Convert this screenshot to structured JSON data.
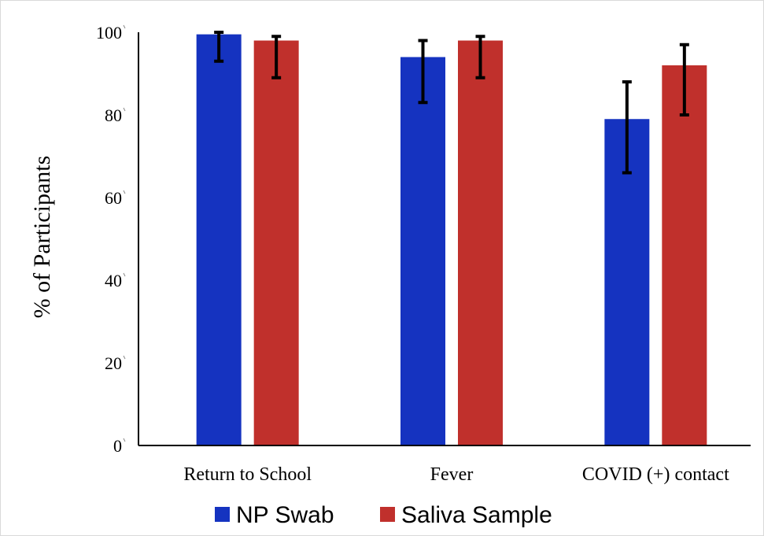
{
  "chart_data": {
    "type": "bar",
    "categories": [
      "Return to School",
      "Fever",
      "COVID (+) contact"
    ],
    "series": [
      {
        "name": "NP Swab",
        "color": "#1533c0",
        "values": [
          99.5,
          94,
          79
        ],
        "error_low": [
          93,
          83,
          66
        ],
        "error_high": [
          100,
          98,
          88
        ]
      },
      {
        "name": "Saliva Sample",
        "color": "#c0302c",
        "values": [
          98,
          98,
          92
        ],
        "error_low": [
          89,
          89,
          80
        ],
        "error_high": [
          99,
          99,
          97
        ]
      }
    ],
    "ylabel": "% of Participants",
    "xlabel": "",
    "ylim": [
      0,
      100
    ],
    "yticks": [
      0,
      20,
      40,
      60,
      80,
      100
    ],
    "grid": false,
    "legend_position": "bottom"
  }
}
